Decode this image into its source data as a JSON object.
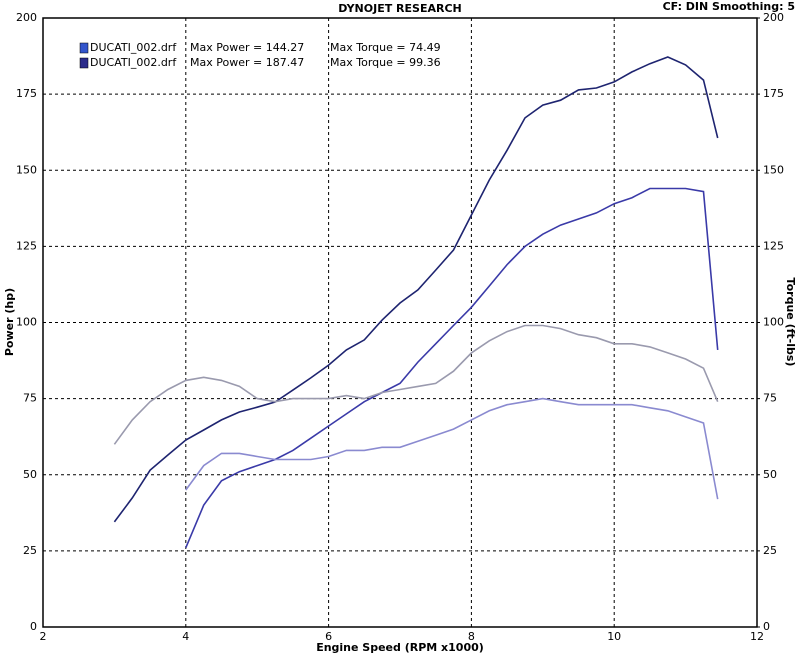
{
  "chart_data": {
    "type": "line",
    "title": "DYNOJET RESEARCH",
    "subtitle": "CF: DIN  Smoothing: 5",
    "x_label": "Engine Speed (RPM x1000)",
    "y_label": "Power (hp)",
    "y2_label": "Torque (ft-lbs)",
    "legend": [
      {
        "color": "#3355cc",
        "file": "DUCATI_002.drf",
        "power": "Max Power = 144.27",
        "torque": "Max Torque = 74.49"
      },
      {
        "color": "#2b2b8a",
        "file": "DUCATI_002.drf",
        "power": "Max Power = 187.47",
        "torque": "Max Torque = 99.36"
      }
    ],
    "x": [
      3.0,
      3.25,
      3.5,
      3.75,
      4.0,
      4.25,
      4.5,
      4.75,
      5.0,
      5.25,
      5.5,
      5.75,
      6.0,
      6.25,
      6.5,
      6.75,
      7.0,
      7.25,
      7.5,
      7.75,
      8.0,
      8.25,
      8.5,
      8.75,
      9.0,
      9.25,
      9.5,
      9.75,
      10.0,
      10.25,
      10.5,
      10.75,
      11.0,
      11.25,
      11.45
    ],
    "series": [
      {
        "color": "#1e2470",
        "values": [
          34.5,
          42.4,
          51.5,
          56.5,
          61.4,
          64.7,
          68,
          70.6,
          72.2,
          73.9,
          77.8,
          81.8,
          86,
          91,
          94.3,
          100.8,
          106.4,
          110.7,
          117.2,
          123.8,
          135.3,
          146.8,
          156.6,
          167.2,
          171.4,
          173,
          176.4,
          177,
          179,
          182.3,
          185,
          187.2,
          184.6,
          179.6,
          160.6
        ]
      },
      {
        "color": "#3a3aa8",
        "values": [
          null,
          null,
          null,
          null,
          26,
          40,
          48,
          51,
          53,
          55,
          58,
          62,
          66,
          70,
          74,
          77,
          80,
          87,
          93,
          99,
          105,
          112,
          119,
          125,
          129,
          132,
          134,
          136,
          139,
          141,
          144,
          144,
          144,
          143,
          91
        ]
      },
      {
        "color": "#9a9aae",
        "axis": "y2",
        "values": [
          60,
          68,
          74,
          78,
          81,
          82,
          81,
          79,
          75,
          74,
          75,
          75,
          75,
          76,
          75,
          77,
          78,
          79,
          80,
          84,
          90,
          94,
          97,
          99,
          99,
          98,
          96,
          95,
          93,
          93,
          92,
          90,
          88,
          85,
          74
        ]
      },
      {
        "color": "#8a8ad0",
        "axis": "y2",
        "values": [
          null,
          null,
          null,
          null,
          45,
          53,
          57,
          57,
          56,
          55,
          55,
          55,
          56,
          58,
          58,
          59,
          59,
          61,
          63,
          65,
          68,
          71,
          73,
          74,
          75,
          74,
          73,
          73,
          73,
          73,
          72,
          71,
          69,
          67,
          42
        ]
      }
    ],
    "xlim": [
      2,
      12
    ],
    "xticks": [
      2,
      4,
      6,
      8,
      10,
      12
    ],
    "ylim": [
      0,
      200
    ],
    "yticks": [
      0,
      25,
      50,
      75,
      100,
      125,
      150,
      175,
      200
    ],
    "y2lim": [
      0,
      200
    ],
    "y2ticks": [
      0,
      25,
      50,
      75,
      100,
      125,
      150,
      175,
      200
    ],
    "grid": true
  }
}
